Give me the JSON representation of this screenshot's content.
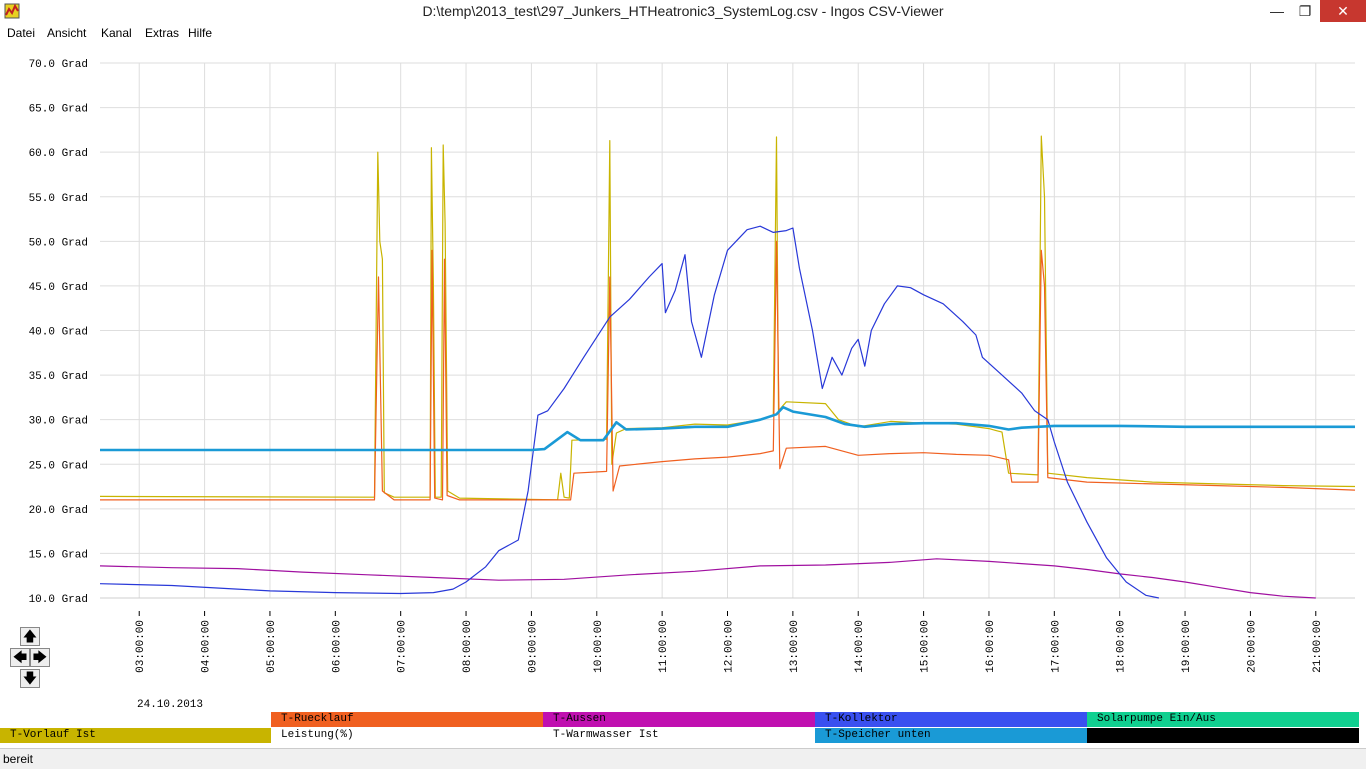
{
  "window": {
    "title": "D:\\temp\\2013_test\\297_Junkers_HTHeatronic3_SystemLog.csv - Ingos CSV-Viewer"
  },
  "menu": [
    "Datei",
    "Ansicht",
    "Kanal",
    "Extras",
    "Hilfe"
  ],
  "status": "bereit",
  "chart_data": {
    "type": "line",
    "date_label": "24.10.2013",
    "x_unit": "hour of day",
    "xlim": [
      2.4,
      21.6
    ],
    "ylim": [
      10.0,
      70.0
    ],
    "grid": true,
    "y_ticks": [
      "10.0 Grad",
      "15.0 Grad",
      "20.0 Grad",
      "25.0 Grad",
      "30.0 Grad",
      "35.0 Grad",
      "40.0 Grad",
      "45.0 Grad",
      "50.0 Grad",
      "55.0 Grad",
      "60.0 Grad",
      "65.0 Grad",
      "70.0 Grad"
    ],
    "x_ticks": [
      "03:00:00",
      "04:00:00",
      "05:00:00",
      "06:00:00",
      "07:00:00",
      "08:00:00",
      "09:00:00",
      "10:00:00",
      "11:00:00",
      "12:00:00",
      "13:00:00",
      "14:00:00",
      "15:00:00",
      "16:00:00",
      "17:00:00",
      "18:00:00",
      "19:00:00",
      "20:00:00",
      "21:00:00"
    ],
    "series": [
      {
        "name": "T-Vorlauf Ist",
        "color": "#c8b400",
        "points": [
          [
            2.4,
            21.4
          ],
          [
            6.6,
            21.3
          ],
          [
            6.65,
            60.0
          ],
          [
            6.68,
            50.0
          ],
          [
            6.72,
            48.0
          ],
          [
            6.75,
            21.8
          ],
          [
            6.9,
            21.3
          ],
          [
            7.45,
            21.3
          ],
          [
            7.47,
            60.5
          ],
          [
            7.5,
            45.0
          ],
          [
            7.53,
            21.3
          ],
          [
            7.62,
            21.3
          ],
          [
            7.65,
            60.8
          ],
          [
            7.68,
            52.0
          ],
          [
            7.72,
            22.0
          ],
          [
            7.9,
            21.2
          ],
          [
            9.4,
            21.0
          ],
          [
            9.45,
            24.0
          ],
          [
            9.5,
            21.3
          ],
          [
            9.58,
            21.2
          ],
          [
            9.62,
            27.7
          ],
          [
            10.15,
            27.8
          ],
          [
            10.2,
            61.3
          ],
          [
            10.23,
            25.0
          ],
          [
            10.3,
            28.5
          ],
          [
            10.45,
            29.0
          ],
          [
            11.0,
            29.1
          ],
          [
            11.5,
            29.5
          ],
          [
            12.0,
            29.4
          ],
          [
            12.5,
            30.0
          ],
          [
            12.7,
            30.5
          ],
          [
            12.75,
            61.7
          ],
          [
            12.78,
            31.0
          ],
          [
            12.9,
            32.0
          ],
          [
            13.5,
            31.8
          ],
          [
            13.7,
            30.0
          ],
          [
            14.0,
            29.2
          ],
          [
            14.5,
            29.8
          ],
          [
            15.0,
            29.6
          ],
          [
            15.5,
            29.5
          ],
          [
            16.0,
            29.0
          ],
          [
            16.1,
            28.8
          ],
          [
            16.2,
            28.6
          ],
          [
            16.3,
            24.0
          ],
          [
            16.75,
            23.8
          ],
          [
            16.8,
            61.8
          ],
          [
            16.85,
            55.0
          ],
          [
            16.9,
            24.0
          ],
          [
            17.5,
            23.5
          ],
          [
            18.5,
            23.0
          ],
          [
            19.5,
            22.8
          ],
          [
            20.5,
            22.6
          ],
          [
            21.6,
            22.5
          ]
        ]
      },
      {
        "name": "T-Ruecklauf",
        "color": "#f06020",
        "points": [
          [
            2.4,
            21.0
          ],
          [
            6.6,
            21.0
          ],
          [
            6.66,
            46.0
          ],
          [
            6.72,
            22.0
          ],
          [
            6.9,
            21.0
          ],
          [
            7.45,
            21.0
          ],
          [
            7.48,
            49.0
          ],
          [
            7.52,
            21.2
          ],
          [
            7.64,
            21.0
          ],
          [
            7.67,
            48.0
          ],
          [
            7.71,
            21.5
          ],
          [
            7.9,
            21.0
          ],
          [
            9.6,
            21.0
          ],
          [
            9.65,
            24.0
          ],
          [
            10.15,
            24.2
          ],
          [
            10.2,
            46.0
          ],
          [
            10.25,
            22.0
          ],
          [
            10.35,
            24.8
          ],
          [
            11.0,
            25.3
          ],
          [
            11.5,
            25.6
          ],
          [
            12.0,
            25.8
          ],
          [
            12.5,
            26.2
          ],
          [
            12.7,
            26.5
          ],
          [
            12.75,
            50.0
          ],
          [
            12.8,
            24.5
          ],
          [
            12.9,
            26.8
          ],
          [
            13.5,
            27.0
          ],
          [
            14.0,
            26.0
          ],
          [
            14.5,
            26.2
          ],
          [
            15.0,
            26.3
          ],
          [
            15.5,
            26.1
          ],
          [
            16.0,
            26.0
          ],
          [
            16.3,
            25.5
          ],
          [
            16.35,
            23.0
          ],
          [
            16.75,
            23.0
          ],
          [
            16.8,
            49.0
          ],
          [
            16.85,
            45.0
          ],
          [
            16.9,
            23.5
          ],
          [
            17.5,
            23.0
          ],
          [
            18.5,
            22.8
          ],
          [
            19.5,
            22.6
          ],
          [
            20.5,
            22.4
          ],
          [
            21.6,
            22.1
          ]
        ]
      },
      {
        "name": "T-Aussen",
        "color": "#a010a0",
        "points": [
          [
            2.4,
            13.6
          ],
          [
            3.5,
            13.4
          ],
          [
            4.5,
            13.3
          ],
          [
            5.5,
            12.9
          ],
          [
            6.5,
            12.6
          ],
          [
            7.5,
            12.3
          ],
          [
            8.5,
            12.0
          ],
          [
            9.5,
            12.1
          ],
          [
            10.5,
            12.6
          ],
          [
            11.5,
            13.0
          ],
          [
            12.5,
            13.6
          ],
          [
            13.5,
            13.7
          ],
          [
            14.5,
            14.0
          ],
          [
            15.2,
            14.4
          ],
          [
            16.0,
            14.1
          ],
          [
            17.0,
            13.6
          ],
          [
            17.5,
            13.2
          ],
          [
            18.0,
            12.7
          ],
          [
            18.5,
            12.3
          ],
          [
            19.0,
            11.8
          ],
          [
            19.5,
            11.2
          ],
          [
            20.0,
            10.6
          ],
          [
            20.5,
            10.2
          ],
          [
            21.0,
            10.0
          ]
        ]
      },
      {
        "name": "T-Kollektor",
        "color": "#2838d8",
        "points": [
          [
            2.4,
            11.6
          ],
          [
            3.5,
            11.4
          ],
          [
            4.5,
            11.0
          ],
          [
            5.0,
            10.8
          ],
          [
            6.0,
            10.6
          ],
          [
            7.0,
            10.5
          ],
          [
            7.5,
            10.6
          ],
          [
            7.8,
            11.0
          ],
          [
            8.0,
            11.8
          ],
          [
            8.3,
            13.5
          ],
          [
            8.5,
            15.3
          ],
          [
            8.8,
            16.5
          ],
          [
            8.95,
            22.0
          ],
          [
            9.1,
            30.5
          ],
          [
            9.25,
            31.0
          ],
          [
            9.5,
            33.5
          ],
          [
            9.8,
            37.0
          ],
          [
            10.2,
            41.5
          ],
          [
            10.5,
            43.5
          ],
          [
            10.8,
            46.0
          ],
          [
            11.0,
            47.5
          ],
          [
            11.05,
            42.0
          ],
          [
            11.2,
            44.5
          ],
          [
            11.35,
            48.5
          ],
          [
            11.45,
            41.0
          ],
          [
            11.6,
            37.0
          ],
          [
            11.8,
            44.0
          ],
          [
            12.0,
            49.0
          ],
          [
            12.3,
            51.3
          ],
          [
            12.5,
            51.7
          ],
          [
            12.7,
            51.0
          ],
          [
            12.9,
            51.2
          ],
          [
            13.0,
            51.5
          ],
          [
            13.1,
            47.0
          ],
          [
            13.3,
            40.0
          ],
          [
            13.45,
            33.5
          ],
          [
            13.6,
            37.0
          ],
          [
            13.75,
            35.0
          ],
          [
            13.9,
            38.0
          ],
          [
            14.0,
            39.0
          ],
          [
            14.1,
            36.0
          ],
          [
            14.2,
            40.0
          ],
          [
            14.4,
            43.0
          ],
          [
            14.6,
            45.0
          ],
          [
            14.8,
            44.8
          ],
          [
            15.0,
            44.0
          ],
          [
            15.3,
            43.0
          ],
          [
            15.6,
            41.0
          ],
          [
            15.8,
            39.5
          ],
          [
            15.9,
            37.0
          ],
          [
            16.2,
            35.0
          ],
          [
            16.5,
            33.0
          ],
          [
            16.7,
            31.0
          ],
          [
            16.9,
            30.0
          ],
          [
            17.0,
            27.5
          ],
          [
            17.2,
            23.0
          ],
          [
            17.5,
            18.5
          ],
          [
            17.8,
            14.5
          ],
          [
            18.1,
            11.8
          ],
          [
            18.4,
            10.3
          ],
          [
            18.6,
            10.0
          ]
        ]
      },
      {
        "name": "T-Speicher unten",
        "color": "#1a9ad6",
        "points": [
          [
            2.4,
            26.6
          ],
          [
            9.0,
            26.6
          ],
          [
            9.2,
            26.7
          ],
          [
            9.4,
            27.8
          ],
          [
            9.55,
            28.6
          ],
          [
            9.75,
            27.7
          ],
          [
            10.1,
            27.7
          ],
          [
            10.3,
            29.7
          ],
          [
            10.45,
            28.9
          ],
          [
            11.0,
            29.0
          ],
          [
            11.5,
            29.2
          ],
          [
            12.0,
            29.2
          ],
          [
            12.5,
            30.0
          ],
          [
            12.75,
            30.6
          ],
          [
            12.85,
            31.4
          ],
          [
            13.0,
            30.9
          ],
          [
            13.5,
            30.3
          ],
          [
            13.8,
            29.5
          ],
          [
            14.1,
            29.2
          ],
          [
            14.5,
            29.5
          ],
          [
            15.0,
            29.6
          ],
          [
            15.5,
            29.6
          ],
          [
            16.0,
            29.3
          ],
          [
            16.3,
            28.9
          ],
          [
            16.5,
            29.1
          ],
          [
            17.0,
            29.3
          ],
          [
            18.0,
            29.3
          ],
          [
            19.0,
            29.2
          ],
          [
            20.0,
            29.2
          ],
          [
            21.6,
            29.2
          ]
        ]
      },
      {
        "name": "Solarpumpe Ein/Aus",
        "color": "#10d090",
        "points": []
      },
      {
        "name": "Leistung(%)",
        "color": "#ffffff",
        "points": []
      },
      {
        "name": "T-Warmwasser Ist",
        "color": "#ffffff",
        "points": []
      }
    ],
    "legend": [
      {
        "label": "T-Ruecklauf",
        "color": "#f06020"
      },
      {
        "label": "T-Aussen",
        "color": "#c010b0"
      },
      {
        "label": "T-Kollektor",
        "color": "#3a50f0"
      },
      {
        "label": "Solarpumpe Ein/Aus",
        "color": "#10d090"
      },
      {
        "label": "T-Vorlauf Ist",
        "color": "#c8b400"
      },
      {
        "label": "Leistung(%)",
        "color": "#ffffff"
      },
      {
        "label": "T-Warmwasser Ist",
        "color": "#ffffff"
      },
      {
        "label": "T-Speicher unten",
        "color": "#1a9ad6"
      },
      {
        "label": "",
        "color": "#000000"
      }
    ]
  }
}
